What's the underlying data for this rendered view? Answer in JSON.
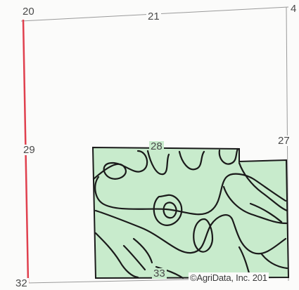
{
  "map": {
    "section_labels": {
      "nw_corner": "20",
      "top_mid": "21",
      "ne_corner": "4",
      "west_mid": "29",
      "center": "28",
      "east_mid": "27",
      "sw_corner": "32",
      "bottom_mid": "33"
    },
    "copyright": "©AgriData, Inc. 201",
    "colors": {
      "field_fill": "#c8ebcc",
      "field_outline": "#1a1a1a",
      "section_line": "#9a9a9a",
      "highlight_line": "#e0404e",
      "background": "#fbfbfa"
    }
  }
}
